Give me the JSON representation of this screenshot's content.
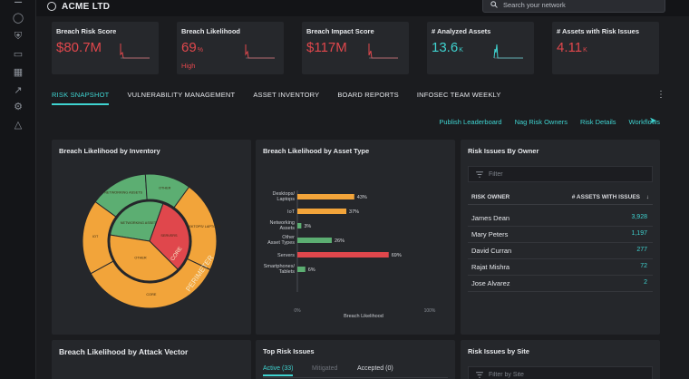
{
  "rail": {
    "icons": [
      "target-icon",
      "shield-icon",
      "devices-icon",
      "grid-icon",
      "trend-icon",
      "gear-icon",
      "warning-icon"
    ]
  },
  "header": {
    "brand": "ACME LTD",
    "search_placeholder": "Search your network"
  },
  "kpis": [
    {
      "title": "Breach Risk Score",
      "value": "$80.7M",
      "unit": "",
      "sub": "",
      "color": "#e0474c"
    },
    {
      "title": "Breach Likelihood",
      "value": "69",
      "unit": "%",
      "sub": "High",
      "color": "#e0474c"
    },
    {
      "title": "Breach Impact Score",
      "value": "$117M",
      "unit": "",
      "sub": "",
      "color": "#e0474c"
    },
    {
      "title": "# Analyzed Assets",
      "value": "13.6",
      "unit": "K",
      "sub": "",
      "color": "#3fd3d0"
    },
    {
      "title": "# Assets with Risk Issues",
      "value": "4.11",
      "unit": "K",
      "sub": "",
      "color": "#e0474c"
    }
  ],
  "tabs": [
    "RISK SNAPSHOT",
    "VULNERABILITY MANAGEMENT",
    "ASSET INVENTORY",
    "BOARD REPORTS",
    "INFOSEC TEAM WEEKLY"
  ],
  "actions": [
    "Publish Leaderboard",
    "Nag Risk Owners",
    "Risk Details",
    "Workflows"
  ],
  "panels": {
    "inventory_title": "Breach Likelihood by Inventory",
    "asset_type_title": "Breach Likelihood by Asset Type",
    "owner_title": "Risk Issues By Owner",
    "attack_vector_title": "Breach Likelihood by Attack Vector",
    "top_risk_title": "Top Risk Issues",
    "site_title": "Risk Issues by Site"
  },
  "owner": {
    "filter_placeholder": "Filter",
    "col_owner": "RISK OWNER",
    "col_count": "# ASSETS WITH ISSUES",
    "rows": [
      {
        "name": "James Dean",
        "count": "3,928"
      },
      {
        "name": "Mary Peters",
        "count": "1,197"
      },
      {
        "name": "David Curran",
        "count": "277"
      },
      {
        "name": "Rajat Mishra",
        "count": "72"
      },
      {
        "name": "Jose Alvarez",
        "count": "2"
      }
    ]
  },
  "top_risk": {
    "tabs": [
      "Active (33)",
      "Mitigated",
      "Accepted (0)"
    ]
  },
  "site": {
    "filter_placeholder": "Filter by Site"
  },
  "colors": {
    "accent": "#3fd3d0",
    "danger": "#e0474c",
    "orange": "#f2a43a",
    "green": "#5cae72"
  },
  "chart_data": [
    {
      "type": "bar",
      "title": "Breach Likelihood by Asset Type",
      "xlabel": "Breach Likelihood",
      "xlim": [
        0,
        100
      ],
      "x_tick_labels": [
        "0%",
        "100%"
      ],
      "categories": [
        "Desktops/ Laptops",
        "IoT",
        "Networking Assets",
        "Other Asset Types",
        "Servers",
        "Smartphones/ Tablets"
      ],
      "values": [
        43,
        37,
        3,
        26,
        69,
        6
      ],
      "value_labels": [
        "43%",
        "37%",
        "3%",
        "26%",
        "69%",
        "6%"
      ],
      "bar_colors": [
        "#f2a43a",
        "#f2a43a",
        "#5cae72",
        "#5cae72",
        "#e0474c",
        "#5cae72"
      ]
    },
    {
      "type": "pie",
      "title": "Breach Likelihood by Inventory",
      "center_labels": [
        "NETWORKING ASSETS",
        "OTHER"
      ],
      "inner_ring": {
        "label": "CORE",
        "slices": [
          {
            "label": "NETWORKING ASSETS",
            "value": 28,
            "color": "#5cae72"
          },
          {
            "label": "SERVERS",
            "value": 32,
            "color": "#e0474c"
          },
          {
            "label": "OTHER",
            "value": 40,
            "color": "#f2a43a"
          }
        ]
      },
      "outer_ring": {
        "label": "PERIMETER",
        "slices": [
          {
            "label": "DESKTOPS/ LAPTOPS",
            "value": 22,
            "color": "#f2a43a"
          },
          {
            "label": "CORE",
            "value": 35,
            "color": "#f2a43a"
          },
          {
            "label": "IOT",
            "value": 18,
            "color": "#f2a43a"
          },
          {
            "label": "NETWORKING ASSETS",
            "value": 14,
            "color": "#5cae72"
          },
          {
            "label": "OTHER",
            "value": 11,
            "color": "#5cae72"
          }
        ]
      }
    }
  ]
}
